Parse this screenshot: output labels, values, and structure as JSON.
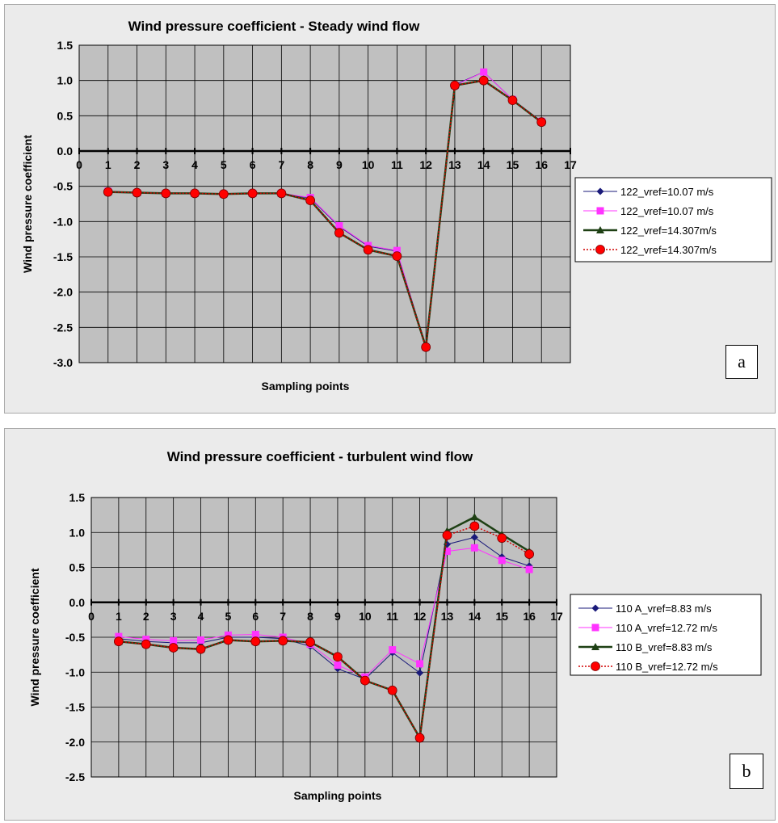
{
  "colors": {
    "s1": "#1a1a7a",
    "s2": "#ff33ff",
    "s3": "#1e4014",
    "s4": "#ff0000",
    "s4_dot": "#d10000",
    "plot_bg": "#c0c0c0",
    "grid": "#000000"
  },
  "chart_data": [
    {
      "type": "line",
      "title": "Wind  pressure  coefficient  - Steady  wind  flow",
      "xlabel": "Sampling points",
      "ylabel": "Wind pressure coefficient",
      "xlim": [
        0,
        17
      ],
      "ylim": [
        -3.0,
        1.5
      ],
      "x_ticks": [
        "0",
        "1",
        "2",
        "3",
        "4",
        "5",
        "6",
        "7",
        "8",
        "9",
        "10",
        "11",
        "12",
        "13",
        "14",
        "15",
        "16",
        "17"
      ],
      "y_ticks": [
        "1.5",
        "1.0",
        "0.5",
        "0.0",
        "-0.5",
        "-1.0",
        "-1.5",
        "-2.0",
        "-2.5",
        "-3.0"
      ],
      "grid": true,
      "legend_position": "right",
      "panel_label": "a",
      "x": [
        1,
        2,
        3,
        4,
        5,
        6,
        7,
        8,
        9,
        10,
        11,
        12,
        13,
        14,
        15,
        16
      ],
      "series": [
        {
          "name": "122_vref=10.07 m/s",
          "marker": "diamond",
          "values": [
            -0.57,
            -0.59,
            -0.6,
            -0.6,
            -0.61,
            -0.6,
            -0.6,
            -0.67,
            -1.07,
            -1.35,
            -1.42,
            -2.78,
            0.94,
            1.12,
            0.73,
            0.42
          ]
        },
        {
          "name": "122_vref=10.07 m/s",
          "marker": "square",
          "values": [
            -0.57,
            -0.59,
            -0.6,
            -0.6,
            -0.61,
            -0.6,
            -0.6,
            -0.66,
            -1.06,
            -1.34,
            -1.41,
            -2.78,
            0.93,
            1.12,
            0.73,
            0.42
          ]
        },
        {
          "name": "122_vref=14.307m/s",
          "marker": "triangle",
          "values": [
            -0.58,
            -0.59,
            -0.6,
            -0.6,
            -0.61,
            -0.6,
            -0.6,
            -0.7,
            -1.16,
            -1.4,
            -1.49,
            -2.78,
            0.93,
            1.0,
            0.72,
            0.41
          ]
        },
        {
          "name": "122_vref=14.307m/s",
          "marker": "circle",
          "values": [
            -0.58,
            -0.59,
            -0.6,
            -0.6,
            -0.61,
            -0.6,
            -0.6,
            -0.7,
            -1.16,
            -1.4,
            -1.49,
            -2.78,
            0.93,
            1.0,
            0.72,
            0.41
          ]
        }
      ]
    },
    {
      "type": "line",
      "title": "Wind  pressure  coefficient  - turbulent  wind  flow",
      "xlabel": "Sampling points",
      "ylabel": "Wind pressure coefficient",
      "xlim": [
        0,
        17
      ],
      "ylim": [
        -2.5,
        1.5
      ],
      "x_ticks": [
        "0",
        "1",
        "2",
        "3",
        "4",
        "5",
        "6",
        "7",
        "8",
        "9",
        "10",
        "11",
        "12",
        "13",
        "14",
        "15",
        "16",
        "17"
      ],
      "y_ticks": [
        "1.5",
        "1.0",
        "0.5",
        "0.0",
        "-0.5",
        "-1.0",
        "-1.5",
        "-2.0",
        "-2.5"
      ],
      "grid": true,
      "legend_position": "right",
      "panel_label": "b",
      "x": [
        1,
        2,
        3,
        4,
        5,
        6,
        7,
        8,
        9,
        10,
        11,
        12,
        13,
        14,
        15,
        16
      ],
      "series": [
        {
          "name": "110 A_vref=8.83 m/s",
          "marker": "diamond",
          "values": [
            -0.52,
            -0.56,
            -0.58,
            -0.58,
            -0.5,
            -0.5,
            -0.52,
            -0.63,
            -0.95,
            -1.1,
            -0.72,
            -1.01,
            0.83,
            0.93,
            0.65,
            0.52
          ]
        },
        {
          "name": "110 A_vref=12.72 m/s",
          "marker": "square",
          "values": [
            -0.49,
            -0.53,
            -0.55,
            -0.54,
            -0.47,
            -0.46,
            -0.5,
            -0.6,
            -0.9,
            -1.07,
            -0.68,
            -0.88,
            0.73,
            0.78,
            0.6,
            0.47
          ]
        },
        {
          "name": "110 B_vref=8.83 m/s",
          "marker": "triangle",
          "values": [
            -0.56,
            -0.6,
            -0.65,
            -0.67,
            -0.54,
            -0.56,
            -0.55,
            -0.57,
            -0.78,
            -1.12,
            -1.26,
            -1.94,
            1.02,
            1.22,
            0.97,
            0.73
          ]
        },
        {
          "name": "110 B_vref=12.72 m/s",
          "marker": "circle",
          "values": [
            -0.56,
            -0.6,
            -0.65,
            -0.67,
            -0.54,
            -0.56,
            -0.55,
            -0.57,
            -0.78,
            -1.12,
            -1.26,
            -1.94,
            0.96,
            1.09,
            0.92,
            0.69
          ]
        }
      ]
    }
  ]
}
